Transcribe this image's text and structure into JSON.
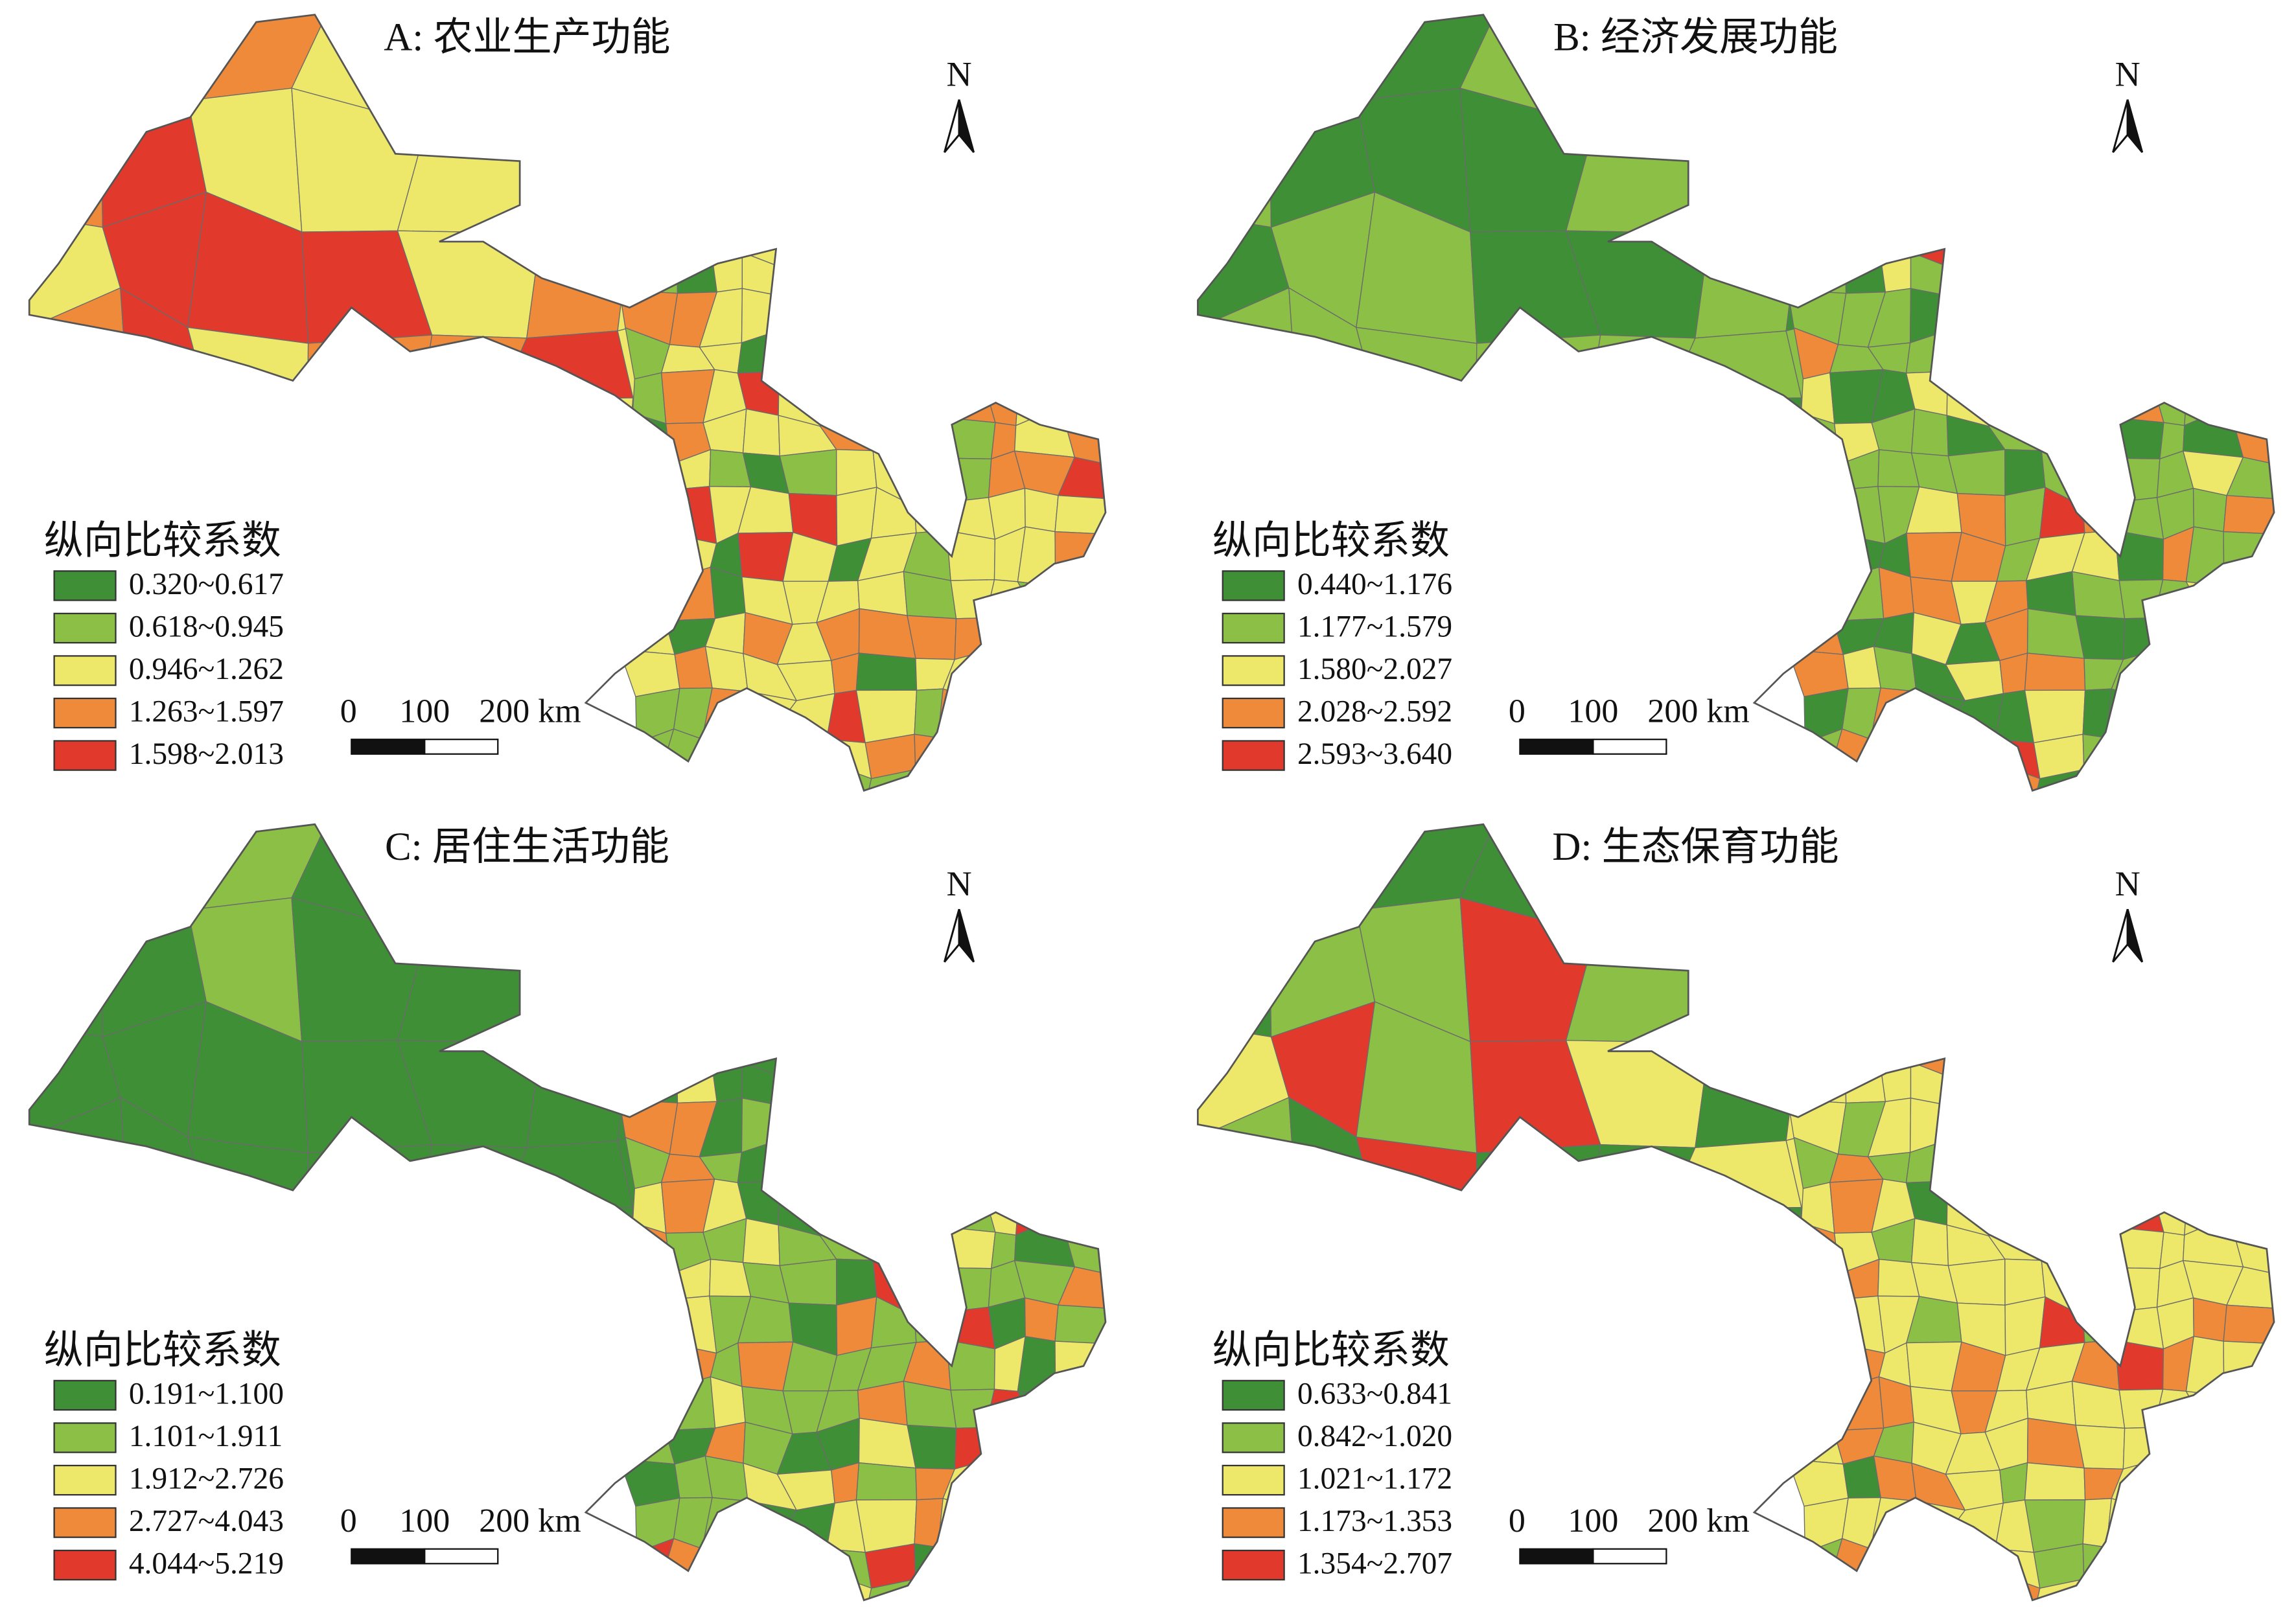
{
  "panels": [
    {
      "title": "A: 农业生产功能",
      "north": "N",
      "legend": {
        "title": "纵向比较系数",
        "items": [
          {
            "label": "0.320~0.617",
            "color": "#3f8f37"
          },
          {
            "label": "0.618~0.945",
            "color": "#8bbf45"
          },
          {
            "label": "0.946~1.262",
            "color": "#eee86a"
          },
          {
            "label": "1.263~1.597",
            "color": "#ee8a3a"
          },
          {
            "label": "1.598~2.013",
            "color": "#e2392d"
          }
        ]
      },
      "scale": {
        "labels": [
          "0",
          "100",
          "200 km"
        ]
      }
    },
    {
      "title": "B: 经济发展功能",
      "north": "N",
      "legend": {
        "title": "纵向比较系数",
        "items": [
          {
            "label": "0.440~1.176",
            "color": "#3f8f37"
          },
          {
            "label": "1.177~1.579",
            "color": "#8bbf45"
          },
          {
            "label": "1.580~2.027",
            "color": "#eee86a"
          },
          {
            "label": "2.028~2.592",
            "color": "#ee8a3a"
          },
          {
            "label": "2.593~3.640",
            "color": "#e2392d"
          }
        ]
      },
      "scale": {
        "labels": [
          "0",
          "100",
          "200 km"
        ]
      }
    },
    {
      "title": "C: 居住生活功能",
      "north": "N",
      "legend": {
        "title": "纵向比较系数",
        "items": [
          {
            "label": "0.191~1.100",
            "color": "#3f8f37"
          },
          {
            "label": "1.101~1.911",
            "color": "#8bbf45"
          },
          {
            "label": "1.912~2.726",
            "color": "#eee86a"
          },
          {
            "label": "2.727~4.043",
            "color": "#ee8a3a"
          },
          {
            "label": "4.044~5.219",
            "color": "#e2392d"
          }
        ]
      },
      "scale": {
        "labels": [
          "0",
          "100",
          "200 km"
        ]
      }
    },
    {
      "title": "D: 生态保育功能",
      "north": "N",
      "legend": {
        "title": "纵向比较系数",
        "items": [
          {
            "label": "0.633~0.841",
            "color": "#3f8f37"
          },
          {
            "label": "0.842~1.020",
            "color": "#8bbf45"
          },
          {
            "label": "1.021~1.172",
            "color": "#eee86a"
          },
          {
            "label": "1.173~1.353",
            "color": "#ee8a3a"
          },
          {
            "label": "1.354~2.707",
            "color": "#e2392d"
          }
        ]
      },
      "scale": {
        "labels": [
          "0",
          "100",
          "200 km"
        ]
      }
    }
  ]
}
